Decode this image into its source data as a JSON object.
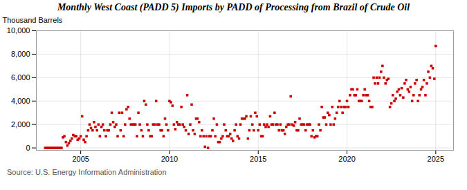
{
  "chart_data": {
    "type": "scatter",
    "title": "Monthly West Coast (PADD 5) Imports by PADD of Processing from Brazil of Crude Oil",
    "ylabel": "Thousand Barrels",
    "source": "Source: U.S. Energy Information Administration",
    "color": "#cc0000",
    "marker": "square",
    "grid": true,
    "xlim": [
      2002.5,
      2026.0
    ],
    "ylim": [
      -200,
      10000
    ],
    "xticks": [
      2005,
      2010,
      2015,
      2020,
      2025
    ],
    "yticks": [
      0,
      {
        "value": 2000,
        "label": "2,000"
      },
      {
        "value": 4000,
        "label": "4,000"
      },
      {
        "value": 6000,
        "label": "6,000"
      },
      {
        "value": 8000,
        "label": "8,000"
      },
      {
        "value": 10000,
        "label": "10,000"
      }
    ],
    "x": [
      2003.0,
      2003.08,
      2003.17,
      2003.25,
      2003.33,
      2003.42,
      2003.5,
      2003.58,
      2003.67,
      2003.75,
      2003.83,
      2003.92,
      2004.0,
      2004.08,
      2004.17,
      2004.25,
      2004.33,
      2004.42,
      2004.5,
      2004.58,
      2004.67,
      2004.75,
      2004.83,
      2004.92,
      2005.0,
      2005.08,
      2005.17,
      2005.25,
      2005.33,
      2005.42,
      2005.5,
      2005.58,
      2005.67,
      2005.75,
      2005.83,
      2005.92,
      2006.0,
      2006.08,
      2006.17,
      2006.25,
      2006.33,
      2006.42,
      2006.5,
      2006.58,
      2006.67,
      2006.75,
      2006.83,
      2006.92,
      2007.0,
      2007.08,
      2007.17,
      2007.25,
      2007.33,
      2007.42,
      2007.5,
      2007.58,
      2007.67,
      2007.75,
      2007.83,
      2007.92,
      2008.0,
      2008.08,
      2008.17,
      2008.25,
      2008.33,
      2008.42,
      2008.5,
      2008.58,
      2008.67,
      2008.75,
      2008.83,
      2008.92,
      2009.0,
      2009.08,
      2009.17,
      2009.25,
      2009.33,
      2009.42,
      2009.5,
      2009.58,
      2009.67,
      2009.75,
      2009.83,
      2009.92,
      2010.0,
      2010.08,
      2010.17,
      2010.25,
      2010.33,
      2010.42,
      2010.5,
      2010.58,
      2010.67,
      2010.75,
      2010.83,
      2010.92,
      2011.0,
      2011.08,
      2011.17,
      2011.25,
      2011.33,
      2011.42,
      2011.5,
      2011.58,
      2011.67,
      2011.75,
      2011.83,
      2011.92,
      2012.0,
      2012.08,
      2012.17,
      2012.25,
      2012.33,
      2012.42,
      2012.5,
      2012.58,
      2012.67,
      2012.75,
      2012.83,
      2012.92,
      2013.0,
      2013.08,
      2013.17,
      2013.25,
      2013.33,
      2013.42,
      2013.5,
      2013.58,
      2013.67,
      2013.75,
      2013.83,
      2013.92,
      2014.0,
      2014.08,
      2014.17,
      2014.25,
      2014.33,
      2014.42,
      2014.5,
      2014.58,
      2014.67,
      2014.75,
      2014.83,
      2014.92,
      2015.0,
      2015.08,
      2015.17,
      2015.25,
      2015.33,
      2015.42,
      2015.5,
      2015.58,
      2015.67,
      2015.75,
      2015.83,
      2015.92,
      2016.0,
      2016.08,
      2016.17,
      2016.25,
      2016.33,
      2016.42,
      2016.5,
      2016.58,
      2016.67,
      2016.75,
      2016.83,
      2016.92,
      2017.0,
      2017.08,
      2017.17,
      2017.25,
      2017.33,
      2017.42,
      2017.5,
      2017.58,
      2017.67,
      2017.75,
      2017.83,
      2017.92,
      2018.0,
      2018.08,
      2018.17,
      2018.25,
      2018.33,
      2018.42,
      2018.5,
      2018.58,
      2018.67,
      2018.75,
      2018.83,
      2018.92,
      2019.0,
      2019.08,
      2019.17,
      2019.25,
      2019.33,
      2019.42,
      2019.5,
      2019.58,
      2019.67,
      2019.75,
      2019.83,
      2019.92,
      2020.0,
      2020.08,
      2020.17,
      2020.25,
      2020.33,
      2020.42,
      2020.5,
      2020.58,
      2020.67,
      2020.75,
      2020.83,
      2020.92,
      2021.0,
      2021.08,
      2021.17,
      2021.25,
      2021.33,
      2021.42,
      2021.5,
      2021.58,
      2021.67,
      2021.75,
      2021.83,
      2021.92,
      2022.0,
      2022.08,
      2022.17,
      2022.25,
      2022.33,
      2022.42,
      2022.5,
      2022.58,
      2022.67,
      2022.75,
      2022.83,
      2022.92,
      2023.0,
      2023.08,
      2023.17,
      2023.25,
      2023.33,
      2023.42,
      2023.5,
      2023.58,
      2023.67,
      2023.75,
      2023.83,
      2023.92,
      2024.0,
      2024.08,
      2024.17,
      2024.25,
      2024.33,
      2024.42,
      2024.5,
      2024.58,
      2024.67,
      2024.75,
      2024.83,
      2024.92,
      2025.0
    ],
    "values": [
      0,
      0,
      0,
      0,
      0,
      0,
      0,
      0,
      0,
      0,
      0,
      0,
      900,
      1000,
      500,
      200,
      400,
      600,
      800,
      1100,
      1000,
      1000,
      700,
      800,
      1000,
      2700,
      700,
      500,
      1000,
      1500,
      2000,
      1700,
      1500,
      2200,
      1800,
      1500,
      2000,
      1000,
      1800,
      2000,
      1500,
      1000,
      1500,
      1500,
      2000,
      3000,
      2200,
      1800,
      2000,
      1000,
      3000,
      1500,
      3000,
      1000,
      2000,
      3300,
      3500,
      2500,
      2000,
      2000,
      2000,
      2000,
      1000,
      3000,
      2000,
      1500,
      1000,
      4000,
      3700,
      2000,
      1500,
      1000,
      1000,
      2000,
      2000,
      4000,
      2000,
      2000,
      1500,
      1500,
      1000,
      2500,
      2000,
      1500,
      4000,
      3900,
      3600,
      2000,
      1600,
      2200,
      2000,
      2000,
      3500,
      2000,
      1800,
      1500,
      4500,
      1200,
      2000,
      3700,
      1500,
      1200,
      2500,
      2500,
      2200,
      1000,
      1500,
      1000,
      100,
      1000,
      0,
      1000,
      1000,
      1500,
      2500,
      1000,
      2000,
      500,
      500,
      800,
      1000,
      2000,
      1500,
      1000,
      1000,
      1200,
      800,
      600,
      1500,
      2000,
      1000,
      800,
      2000,
      2500,
      2500,
      2500,
      2700,
      800,
      1500,
      2700,
      2000,
      1500,
      3000,
      2700,
      1500,
      2000,
      1000,
      1000,
      2000,
      1800,
      2000,
      1800,
      2700,
      2000,
      2000,
      3000,
      2000,
      2000,
      1500,
      2000,
      1500,
      1500,
      1200,
      1800,
      2000,
      2000,
      4400,
      2000,
      1900,
      2200,
      1500,
      1500,
      2500,
      2000,
      2000,
      2000,
      1500,
      2000,
      2000,
      2000,
      1000,
      1500,
      900,
      1000,
      1000,
      2000,
      1500,
      3500,
      2600,
      2600,
      2000,
      3000,
      2800,
      2000,
      3500,
      2000,
      2500,
      3000,
      3500,
      4000,
      3500,
      3000,
      3500,
      3500,
      4000,
      3500,
      4500,
      5000,
      5000,
      4500,
      4500,
      5000,
      4000,
      4000,
      4000,
      4500,
      5000,
      4500,
      4500,
      4000,
      3500,
      3500,
      6000,
      5500,
      6000,
      5500,
      6000,
      6500,
      7000,
      6000,
      5500,
      5800,
      5900,
      3500,
      3800,
      4500,
      4000,
      4200,
      4800,
      5000,
      4500,
      5100,
      4300,
      5500,
      5800,
      5000,
      4800,
      5200,
      4000,
      4500,
      5500,
      5800,
      4000,
      4500,
      5000,
      5200,
      5800,
      4500,
      5500,
      6500,
      6000,
      7000,
      6800,
      5900,
      8700
    ]
  }
}
